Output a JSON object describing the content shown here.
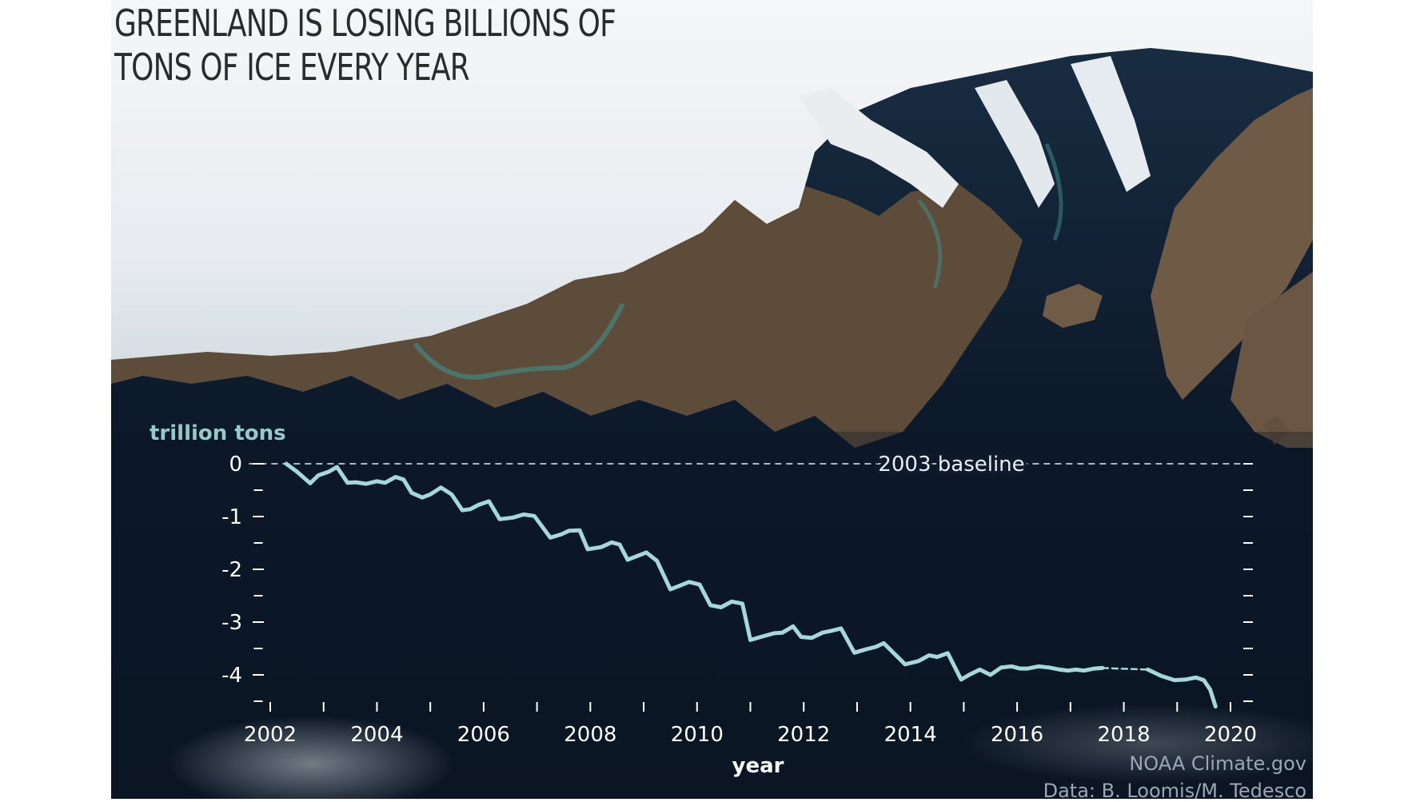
{
  "chart_data": {
    "type": "line",
    "title": "GREENLAND IS LOSING BILLIONS OF TONS OF ICE EVERY YEAR",
    "ylabel": "trillion tons",
    "xlabel": "year",
    "xlim": [
      2001.6,
      2020.2
    ],
    "ylim": [
      -4.6,
      0.4
    ],
    "x_ticks": [
      2002,
      2004,
      2006,
      2008,
      2010,
      2012,
      2014,
      2016,
      2018,
      2020
    ],
    "y_ticks": [
      0,
      -1,
      -2,
      -3,
      -4
    ],
    "baseline": {
      "value": 0,
      "label": "2003 baseline"
    },
    "series": [
      {
        "values_x": [
          2002.3,
          2002.5,
          2002.75,
          2002.9,
          2003.1,
          2003.25,
          2003.45,
          2003.6,
          2003.8,
          2004.0,
          2004.15,
          2004.35,
          2004.5,
          2004.65,
          2004.85,
          2005.0,
          2005.2,
          2005.4,
          2005.6,
          2005.75,
          2005.9,
          2006.1,
          2006.3,
          2006.55,
          2006.75,
          2006.95,
          2007.25,
          2007.45,
          2007.6,
          2007.8,
          2007.95,
          2008.2,
          2008.4,
          2008.55,
          2008.7,
          2008.9,
          2009.05,
          2009.25,
          2009.5,
          2009.7,
          2009.85,
          2010.05,
          2010.25,
          2010.45,
          2010.65,
          2010.85,
          2011.0,
          2011.2,
          2011.45,
          2011.6,
          2011.8,
          2011.95,
          2012.15,
          2012.35,
          2012.5,
          2012.7,
          2012.95,
          2013.15,
          2013.35,
          2013.5,
          2013.65,
          2013.9,
          2014.15,
          2014.35,
          2014.5,
          2014.7,
          2014.95,
          2015.1,
          2015.3,
          2015.5,
          2015.7,
          2015.9,
          2016.05,
          2016.2,
          2016.4,
          2016.6,
          2016.8,
          2016.95,
          2017.1,
          2017.25,
          2017.45,
          2017.6
        ],
        "values_y": [
          0.0,
          -0.15,
          -0.37,
          -0.22,
          -0.15,
          -0.06,
          -0.36,
          -0.35,
          -0.38,
          -0.33,
          -0.36,
          -0.25,
          -0.3,
          -0.55,
          -0.64,
          -0.58,
          -0.45,
          -0.58,
          -0.88,
          -0.86,
          -0.78,
          -0.71,
          -1.05,
          -1.02,
          -0.96,
          -0.99,
          -1.4,
          -1.34,
          -1.27,
          -1.26,
          -1.62,
          -1.58,
          -1.49,
          -1.53,
          -1.82,
          -1.74,
          -1.68,
          -1.84,
          -2.38,
          -2.3,
          -2.24,
          -2.29,
          -2.68,
          -2.72,
          -2.61,
          -2.65,
          -3.34,
          -3.28,
          -3.21,
          -3.2,
          -3.08,
          -3.28,
          -3.3,
          -3.2,
          -3.17,
          -3.12,
          -3.58,
          -3.52,
          -3.47,
          -3.4,
          -3.55,
          -3.8,
          -3.74,
          -3.63,
          -3.66,
          -3.59,
          -4.09,
          -4.0,
          -3.9,
          -4.0,
          -3.86,
          -3.84,
          -3.88,
          -3.88,
          -3.84,
          -3.86,
          -3.9,
          -3.92,
          -3.9,
          -3.92,
          -3.88,
          -3.87
        ]
      },
      {
        "values_x": [
          2017.6,
          2018.45
        ],
        "values_y": [
          -3.87,
          -3.9
        ],
        "style": "dashed"
      },
      {
        "values_x": [
          2018.45,
          2018.7,
          2018.95,
          2019.15,
          2019.35,
          2019.5,
          2019.62,
          2019.72
        ],
        "values_y": [
          -3.9,
          -4.02,
          -4.1,
          -4.09,
          -4.05,
          -4.1,
          -4.28,
          -4.6
        ]
      }
    ]
  },
  "credits": {
    "source": "NOAA Climate.gov",
    "data": "Data: B. Loomis/M. Tedesco"
  },
  "colors": {
    "line": "#a5d8da",
    "baseline": "#c9d3da",
    "axis_label": "#96c9c8",
    "tick_label": "#ffffff",
    "ocean": "#0f1a2c",
    "ice": "#f1f3f6",
    "land": "#6e5a45"
  }
}
